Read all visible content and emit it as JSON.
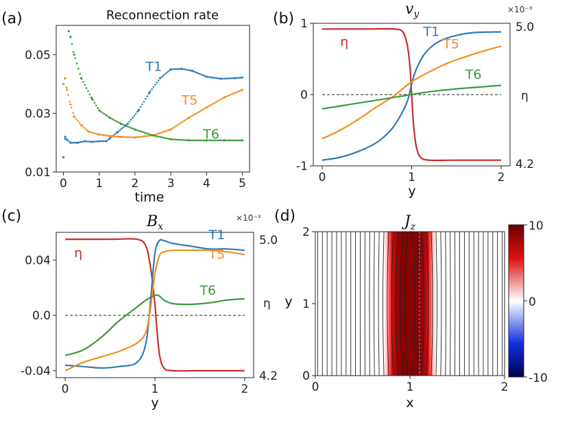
{
  "colors": {
    "T1": "#2e7ab8",
    "T5": "#f28e1c",
    "T6": "#3a9a3a",
    "eta": "#cc2a2a"
  },
  "chart_data": [
    {
      "id": "a",
      "panel_label": "(a)",
      "type": "scatter",
      "title": "Reconnection rate",
      "xlabel": "time",
      "ylabel": "",
      "xlim": [
        -0.2,
        5.2
      ],
      "ylim": [
        0.01,
        0.06
      ],
      "xticks": [
        0,
        1,
        2,
        3,
        4,
        5
      ],
      "xtick_labels": [
        "0",
        "1",
        "2",
        "3",
        "4",
        "5"
      ],
      "yticks": [
        0.01,
        0.03,
        0.05
      ],
      "ytick_labels": [
        "0.01",
        "0.03",
        "0.05"
      ],
      "series": [
        {
          "name": "T1",
          "label_at": [
            2.3,
            0.0445
          ],
          "x": [
            0,
            0.05,
            0.1,
            0.2,
            0.4,
            0.6,
            0.8,
            1.0,
            1.2,
            1.3,
            1.5,
            1.8,
            2.1,
            2.4,
            2.7,
            3.0,
            3.3,
            3.6,
            4.0,
            4.4,
            4.8,
            5.0
          ],
          "y": [
            0.015,
            0.022,
            0.021,
            0.02,
            0.02,
            0.0205,
            0.0203,
            0.0205,
            0.0205,
            0.0215,
            0.0235,
            0.0265,
            0.031,
            0.037,
            0.042,
            0.045,
            0.0452,
            0.0445,
            0.0425,
            0.0418,
            0.042,
            0.0422
          ]
        },
        {
          "name": "T5",
          "label_at": [
            3.3,
            0.033
          ],
          "x": [
            0,
            0.05,
            0.1,
            0.2,
            0.3,
            0.5,
            0.7,
            1.0,
            1.3,
            1.6,
            2.0,
            2.5,
            3.0,
            3.5,
            4.0,
            4.5,
            5.0
          ],
          "y": [
            0.04,
            0.042,
            0.038,
            0.033,
            0.029,
            0.026,
            0.0238,
            0.0228,
            0.0223,
            0.022,
            0.0218,
            0.0225,
            0.0245,
            0.0285,
            0.032,
            0.0355,
            0.038
          ]
        },
        {
          "name": "T6",
          "label_at": [
            3.9,
            0.0215
          ],
          "x": [
            0.15,
            0.2,
            0.3,
            0.5,
            0.8,
            1.0,
            1.3,
            1.6,
            2.0,
            2.5,
            3.0,
            3.5,
            4.0,
            4.5,
            5.0
          ],
          "y": [
            0.058,
            0.056,
            0.05,
            0.042,
            0.035,
            0.031,
            0.0285,
            0.0265,
            0.0245,
            0.0225,
            0.0212,
            0.0208,
            0.0208,
            0.0208,
            0.0208
          ]
        }
      ]
    },
    {
      "id": "b",
      "panel_label": "(b)",
      "type": "line",
      "title": "v",
      "title_sub": "y",
      "xlabel": "y",
      "ylabel": "",
      "xlim": [
        -0.1,
        2.1
      ],
      "ylim": [
        -1.0,
        1.0
      ],
      "xticks": [
        0,
        1,
        2
      ],
      "xtick_labels": [
        "0",
        "1",
        "2"
      ],
      "yticks": [
        -1,
        0,
        1
      ],
      "ytick_labels": [
        "-1",
        "0",
        "1"
      ],
      "right_axis": {
        "label": "η",
        "ticks": [
          "5.0",
          "4.2"
        ],
        "multiplier": "×10⁻³"
      },
      "reference_line": 0,
      "series": [
        {
          "name": "T1",
          "label_at": [
            1.13,
            0.82
          ],
          "x": [
            0,
            0.2,
            0.4,
            0.6,
            0.75,
            0.85,
            0.95,
            1.0,
            1.05,
            1.15,
            1.3,
            1.5,
            1.7,
            2.0
          ],
          "y": [
            -0.92,
            -0.88,
            -0.8,
            -0.68,
            -0.52,
            -0.35,
            -0.1,
            0.15,
            0.35,
            0.58,
            0.74,
            0.83,
            0.87,
            0.88
          ]
        },
        {
          "name": "T5",
          "label_at": [
            1.35,
            0.65
          ],
          "x": [
            0,
            0.2,
            0.4,
            0.6,
            0.8,
            1.0,
            1.2,
            1.4,
            1.6,
            1.8,
            2.0
          ],
          "y": [
            -0.62,
            -0.5,
            -0.35,
            -0.18,
            -0.02,
            0.18,
            0.32,
            0.44,
            0.53,
            0.61,
            0.68
          ]
        },
        {
          "name": "T6",
          "label_at": [
            1.6,
            0.22
          ],
          "x": [
            0,
            0.3,
            0.6,
            0.9,
            1.2,
            1.5,
            1.8,
            2.0
          ],
          "y": [
            -0.2,
            -0.14,
            -0.08,
            -0.02,
            0.04,
            0.08,
            0.11,
            0.13
          ]
        },
        {
          "name": "η",
          "label_at": [
            0.2,
            0.68
          ],
          "x": [
            0,
            0.5,
            0.8,
            0.9,
            0.95,
            0.98,
            1.0,
            1.02,
            1.05,
            1.1,
            1.2,
            1.5,
            2.0
          ],
          "y": [
            0.92,
            0.92,
            0.92,
            0.88,
            0.7,
            0.4,
            0.0,
            -0.4,
            -0.72,
            -0.88,
            -0.92,
            -0.92,
            -0.92
          ]
        }
      ]
    },
    {
      "id": "c",
      "panel_label": "(c)",
      "type": "line",
      "title": "B",
      "title_sub": "x",
      "xlabel": "y",
      "ylabel": "",
      "xlim": [
        -0.1,
        2.1
      ],
      "ylim": [
        -0.045,
        0.06
      ],
      "xticks": [
        0,
        1,
        2
      ],
      "xtick_labels": [
        "0",
        "1",
        "2"
      ],
      "yticks": [
        -0.04,
        0.0,
        0.04
      ],
      "ytick_labels": [
        "-0.04",
        "0.0",
        "0.04"
      ],
      "right_axis": {
        "label": "η",
        "ticks": [
          "5.0",
          "4.2"
        ],
        "multiplier": "×10⁻³"
      },
      "reference_line": 0,
      "series": [
        {
          "name": "T1",
          "label_at": [
            1.6,
            0.055
          ],
          "x": [
            0,
            0.2,
            0.4,
            0.6,
            0.8,
            0.9,
            0.95,
            1.0,
            1.05,
            1.1,
            1.2,
            1.4,
            1.6,
            1.8,
            2.0
          ],
          "y": [
            -0.036,
            -0.037,
            -0.038,
            -0.037,
            -0.034,
            -0.02,
            0.01,
            0.045,
            0.054,
            0.054,
            0.052,
            0.05,
            0.048,
            0.048,
            0.047
          ]
        },
        {
          "name": "T5",
          "label_at": [
            1.6,
            0.041
          ],
          "x": [
            0,
            0.2,
            0.4,
            0.6,
            0.8,
            0.9,
            0.95,
            1.0,
            1.05,
            1.1,
            1.2,
            1.4,
            1.6,
            1.8,
            2.0
          ],
          "y": [
            -0.04,
            -0.034,
            -0.03,
            -0.026,
            -0.02,
            -0.012,
            0.005,
            0.03,
            0.043,
            0.046,
            0.047,
            0.047,
            0.047,
            0.046,
            0.044
          ]
        },
        {
          "name": "T6",
          "label_at": [
            1.5,
            0.015
          ],
          "x": [
            0,
            0.2,
            0.4,
            0.6,
            0.8,
            0.9,
            1.0,
            1.05,
            1.1,
            1.2,
            1.4,
            1.6,
            1.8,
            2.0
          ],
          "y": [
            -0.029,
            -0.025,
            -0.016,
            -0.004,
            0.006,
            0.011,
            0.0145,
            0.014,
            0.011,
            0.0085,
            0.008,
            0.009,
            0.011,
            0.012
          ]
        },
        {
          "name": "η",
          "label_at": [
            0.1,
            0.042
          ],
          "x": [
            0,
            0.5,
            0.8,
            0.9,
            0.95,
            0.98,
            1.0,
            1.02,
            1.05,
            1.1,
            1.2,
            1.5,
            2.0
          ],
          "y": [
            0.055,
            0.055,
            0.055,
            0.05,
            0.035,
            0.02,
            0.008,
            -0.008,
            -0.028,
            -0.038,
            -0.04,
            -0.04,
            -0.04
          ]
        }
      ]
    },
    {
      "id": "d",
      "panel_label": "(d)",
      "type": "heatmap",
      "title": "J",
      "title_sub": "z",
      "xlabel": "x",
      "ylabel": "y",
      "xlim": [
        0,
        2
      ],
      "ylim": [
        0,
        2
      ],
      "xticks": [
        0,
        1,
        2
      ],
      "xtick_labels": [
        "0",
        "1",
        "2"
      ],
      "yticks": [
        0,
        1,
        2
      ],
      "ytick_labels": [
        "0",
        "1",
        "2"
      ],
      "colorbar": {
        "min": -10,
        "max": 10,
        "ticks": [
          10,
          0,
          -10
        ],
        "tick_labels": [
          "10",
          "0",
          "-10"
        ]
      },
      "current_sheet": {
        "center_x": 1.0,
        "half_width": 0.27,
        "peak": 9
      },
      "field_line_count": 40,
      "dashed_line_x": 1.1
    }
  ]
}
